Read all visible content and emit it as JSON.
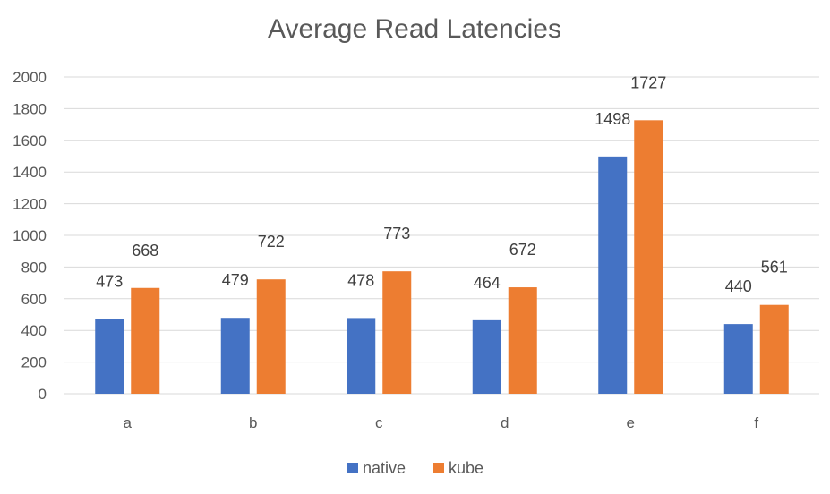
{
  "chart_data": {
    "type": "bar",
    "title": "Average Read Latencies",
    "xlabel": "",
    "ylabel": "",
    "categories": [
      "a",
      "b",
      "c",
      "d",
      "e",
      "f"
    ],
    "series": [
      {
        "name": "native",
        "color": "#4472c4",
        "values": [
          473,
          479,
          478,
          464,
          1498,
          440
        ]
      },
      {
        "name": "kube",
        "color": "#ed7d31",
        "values": [
          668,
          722,
          773,
          672,
          1727,
          561
        ]
      }
    ],
    "ylim": [
      0,
      2000
    ],
    "yticks": [
      0,
      200,
      400,
      600,
      800,
      1000,
      1200,
      1400,
      1600,
      1800,
      2000
    ],
    "grid": true,
    "legend_position": "bottom"
  }
}
